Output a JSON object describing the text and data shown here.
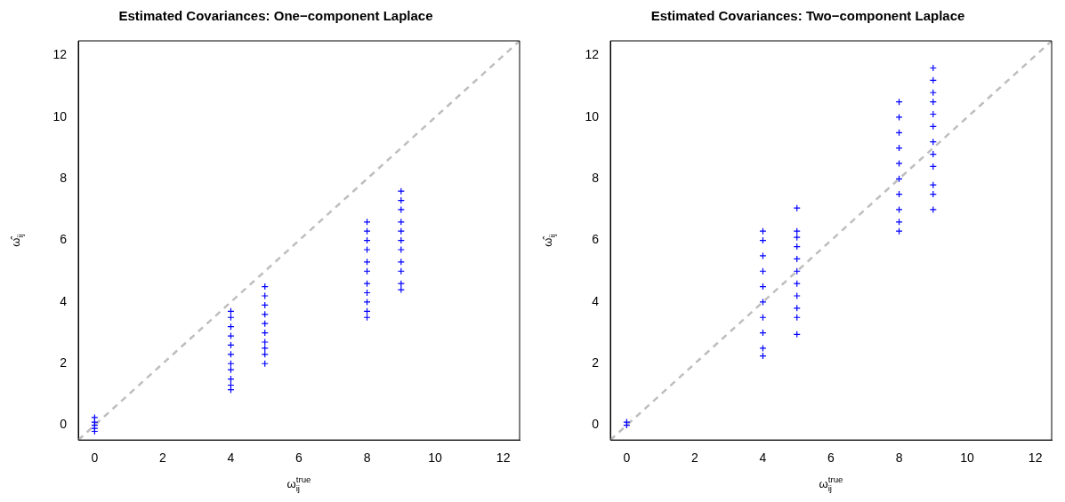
{
  "chart_data": [
    {
      "type": "scatter",
      "title": "Estimated Covariances: One−component Laplace",
      "xlabel": "ω$_{ij}$$^{true}$",
      "ylabel": "ω̂$_{ij}$",
      "marker": "cross",
      "xlim": [
        -0.48,
        12.48
      ],
      "ylim": [
        -0.48,
        12.48
      ],
      "xticks": [
        0,
        2,
        4,
        6,
        8,
        10,
        12
      ],
      "yticks": [
        0,
        2,
        4,
        6,
        8,
        10,
        12
      ],
      "series": [
        {
          "color": "#0000ff",
          "x": [
            0,
            0,
            0,
            0,
            0,
            4,
            4,
            4,
            4,
            4,
            4,
            4,
            4,
            4,
            4,
            4,
            5,
            5,
            5,
            5,
            5,
            5,
            5,
            5,
            5,
            5,
            8,
            8,
            8,
            8,
            8,
            8,
            8,
            8,
            8,
            8,
            8,
            9,
            9,
            9,
            9,
            9,
            9,
            9,
            9,
            9,
            9,
            9
          ],
          "values": [
            -0.2,
            -0.1,
            0,
            0.1,
            0.25,
            1.15,
            1.3,
            1.5,
            1.8,
            2.0,
            2.3,
            2.6,
            2.9,
            3.2,
            3.5,
            3.7,
            2.0,
            2.3,
            2.5,
            2.7,
            3.0,
            3.3,
            3.6,
            3.9,
            4.2,
            4.5,
            3.5,
            3.7,
            4.0,
            4.3,
            4.6,
            5.0,
            5.3,
            5.7,
            6.0,
            6.3,
            6.6,
            4.4,
            4.6,
            5.0,
            5.3,
            5.7,
            6.0,
            6.3,
            6.6,
            7.0,
            7.3,
            7.6
          ]
        },
        {
          "type": "line",
          "color": "#bebebe",
          "line_style": "dashed",
          "marker": "none",
          "x": [
            -0.48,
            12.48
          ],
          "values": [
            -0.48,
            12.48
          ]
        }
      ]
    },
    {
      "type": "scatter",
      "title": "Estimated Covariances: Two−component Laplace",
      "xlabel": "ω$_{ij}$$^{true}$",
      "ylabel": "ω̂$_{ij}$",
      "marker": "cross",
      "xlim": [
        -0.48,
        12.48
      ],
      "ylim": [
        -0.48,
        12.48
      ],
      "xticks": [
        0,
        2,
        4,
        6,
        8,
        10,
        12
      ],
      "yticks": [
        0,
        2,
        4,
        6,
        8,
        10,
        12
      ],
      "series": [
        {
          "color": "#0000ff",
          "x": [
            0,
            0,
            4,
            4,
            4,
            4,
            4,
            4,
            4,
            4,
            4,
            4,
            5,
            5,
            5,
            5,
            5,
            5,
            5,
            5,
            5,
            5,
            5,
            8,
            8,
            8,
            8,
            8,
            8,
            8,
            8,
            8,
            8,
            9,
            9,
            9,
            9,
            9,
            9,
            9,
            9,
            9,
            9,
            9,
            9
          ],
          "values": [
            0,
            0.1,
            2.25,
            2.5,
            3.0,
            3.5,
            4.0,
            4.5,
            5.0,
            5.5,
            6.0,
            6.3,
            2.95,
            3.5,
            3.8,
            4.2,
            4.6,
            5.0,
            5.4,
            5.8,
            6.1,
            6.3,
            7.05,
            6.3,
            6.6,
            7.0,
            7.5,
            8.0,
            8.5,
            9.0,
            9.5,
            10.0,
            10.5,
            7.0,
            7.5,
            7.8,
            8.4,
            8.8,
            9.2,
            9.7,
            10.1,
            10.5,
            10.8,
            11.2,
            11.6
          ]
        },
        {
          "type": "line",
          "color": "#bebebe",
          "line_style": "dashed",
          "marker": "none",
          "x": [
            -0.48,
            12.48
          ],
          "values": [
            -0.48,
            12.48
          ]
        }
      ]
    }
  ]
}
